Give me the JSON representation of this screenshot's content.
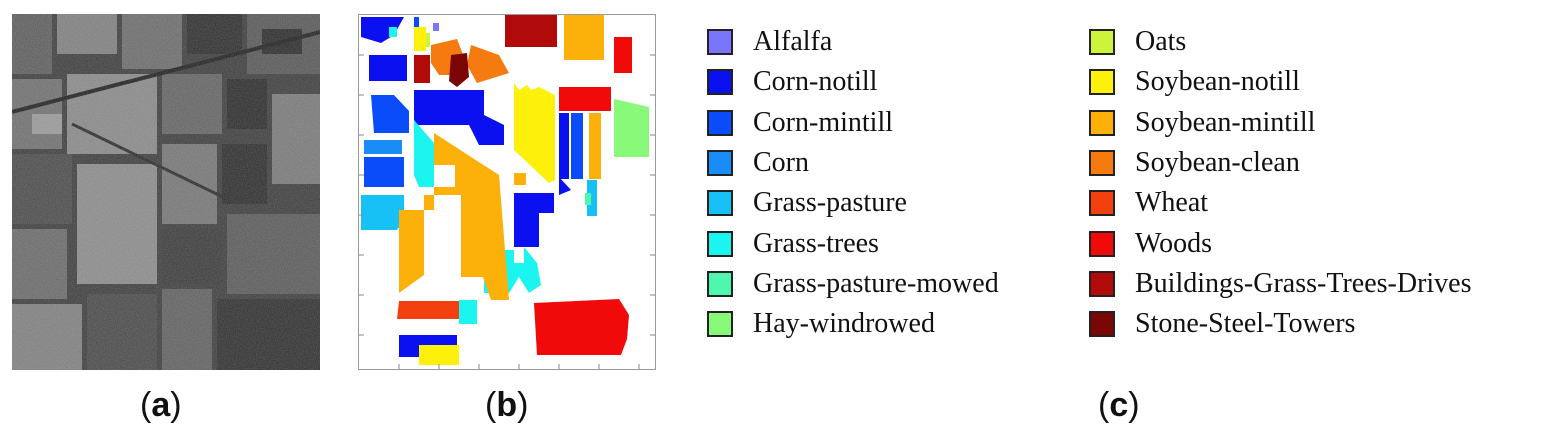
{
  "captions": {
    "a": {
      "open": "(",
      "letter": "a",
      "close": ")"
    },
    "b": {
      "open": "(",
      "letter": "b",
      "close": ")"
    },
    "c": {
      "open": "(",
      "letter": "c",
      "close": ")"
    }
  },
  "legend": {
    "left": [
      {
        "label": "Alfalfa",
        "color": "#7b74ff"
      },
      {
        "label": "Corn-notill",
        "color": "#0a10f0"
      },
      {
        "label": "Corn-mintill",
        "color": "#0a4cf8"
      },
      {
        "label": "Corn",
        "color": "#1a8cf5"
      },
      {
        "label": "Grass-pasture",
        "color": "#17c0f5"
      },
      {
        "label": "Grass-trees",
        "color": "#1cf4f0"
      },
      {
        "label": "Grass-pasture-mowed",
        "color": "#4ff6ad"
      },
      {
        "label": "Hay-windrowed",
        "color": "#88f978"
      }
    ],
    "right": [
      {
        "label": "Oats",
        "color": "#cbf43b"
      },
      {
        "label": "Soybean-notill",
        "color": "#fdf00a"
      },
      {
        "label": "Soybean-mintill",
        "color": "#fbb10a"
      },
      {
        "label": "Soybean-clean",
        "color": "#f57a10"
      },
      {
        "label": "Wheat",
        "color": "#f2410e"
      },
      {
        "label": "Woods",
        "color": "#f00a0a"
      },
      {
        "label": "Buildings-Grass-Trees-Drives",
        "color": "#b00a0a"
      },
      {
        "label": "Stone-Steel-Towers",
        "color": "#7a0606"
      }
    ]
  }
}
